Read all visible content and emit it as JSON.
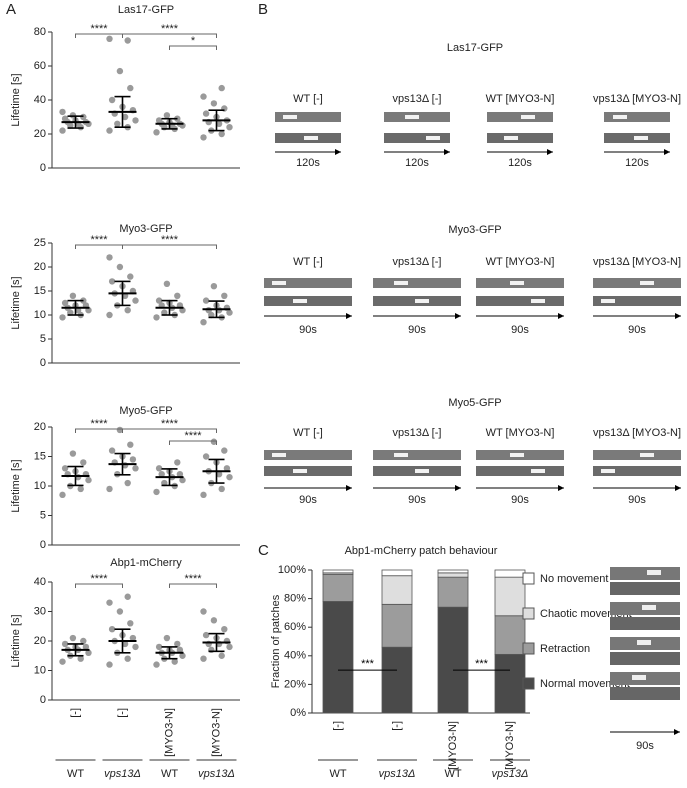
{
  "panel_labels": [
    "A",
    "B",
    "C"
  ],
  "chart_data": [
    {
      "type": "dotplot",
      "title": "Las17-GFP",
      "ylabel": "Lifetime [s]",
      "ylim": [
        0,
        80
      ],
      "yticks": [
        0,
        20,
        40,
        60,
        80
      ],
      "categories": [
        null,
        null,
        null,
        null
      ],
      "group_labels": [
        null,
        null,
        null,
        null
      ],
      "color": "#9a9a9a",
      "groups": [
        {
          "points": [
            22,
            24,
            25,
            26,
            26,
            27,
            27,
            28,
            29,
            30,
            31,
            33
          ],
          "mean": 27,
          "sd": 3.5
        },
        {
          "points": [
            22,
            24,
            26,
            28,
            30,
            32,
            34,
            36,
            40,
            47,
            57,
            76,
            75
          ],
          "mean": 33,
          "sd": 9
        },
        {
          "points": [
            21,
            23,
            24,
            25,
            25,
            26,
            26,
            27,
            28,
            29,
            31
          ],
          "mean": 26,
          "sd": 3
        },
        {
          "points": [
            18,
            20,
            22,
            24,
            26,
            27,
            28,
            30,
            32,
            35,
            38,
            42,
            47
          ],
          "mean": 28,
          "sd": 6
        }
      ],
      "comparisons": [
        {
          "pair": [
            0,
            1
          ],
          "label": "****"
        },
        {
          "pair": [
            1,
            3
          ],
          "label": "****"
        },
        {
          "pair": [
            2,
            3
          ],
          "label": "*"
        }
      ]
    },
    {
      "type": "dotplot",
      "title": "Myo3-GFP",
      "ylabel": "Lifetime [s]",
      "ylim": [
        0,
        25
      ],
      "yticks": [
        0,
        5,
        10,
        15,
        20,
        25
      ],
      "categories": [
        null,
        null,
        null,
        null
      ],
      "group_labels": [
        null,
        null,
        null,
        null
      ],
      "color": "#9a9a9a",
      "groups": [
        {
          "points": [
            9.5,
            10,
            10.5,
            11,
            11,
            11.5,
            12,
            12,
            12.5,
            13,
            14
          ],
          "mean": 11.5,
          "sd": 1.5
        },
        {
          "points": [
            10,
            11,
            12,
            13,
            14,
            14.5,
            15,
            16,
            17,
            18,
            20,
            22
          ],
          "mean": 14.5,
          "sd": 2.5
        },
        {
          "points": [
            9.5,
            10,
            10.5,
            11,
            11.5,
            12,
            12,
            12.5,
            13,
            14,
            16.5
          ],
          "mean": 11.5,
          "sd": 1.5
        },
        {
          "points": [
            8.5,
            9.5,
            10,
            10.5,
            11,
            11,
            11.5,
            12,
            13,
            14,
            16
          ],
          "mean": 11.2,
          "sd": 1.7
        }
      ],
      "comparisons": [
        {
          "pair": [
            0,
            1
          ],
          "label": "****"
        },
        {
          "pair": [
            1,
            3
          ],
          "label": "****"
        }
      ]
    },
    {
      "type": "dotplot",
      "title": "Myo5-GFP",
      "ylabel": "Lifetime [s]",
      "ylim": [
        0,
        20
      ],
      "yticks": [
        0,
        5,
        10,
        15,
        20
      ],
      "categories": [
        null,
        null,
        null,
        null
      ],
      "group_labels": [
        null,
        null,
        null,
        null
      ],
      "color": "#9a9a9a",
      "groups": [
        {
          "points": [
            8.5,
            9.5,
            10,
            11,
            11.5,
            12,
            12,
            12.5,
            13,
            14,
            15.5
          ],
          "mean": 11.7,
          "sd": 1.6
        },
        {
          "points": [
            9.5,
            10.5,
            12,
            13,
            13.5,
            14,
            14.5,
            15,
            16,
            17,
            19.5
          ],
          "mean": 13.7,
          "sd": 1.8
        },
        {
          "points": [
            9,
            10,
            10.5,
            11,
            11.5,
            12,
            12,
            12.5,
            13,
            14
          ],
          "mean": 11.5,
          "sd": 1.4
        },
        {
          "points": [
            8.5,
            9.5,
            10.5,
            11.5,
            12,
            12.5,
            13,
            14,
            15,
            16,
            17.5
          ],
          "mean": 12.5,
          "sd": 2
        }
      ],
      "comparisons": [
        {
          "pair": [
            0,
            1
          ],
          "label": "****"
        },
        {
          "pair": [
            1,
            3
          ],
          "label": "****"
        },
        {
          "pair": [
            2,
            3
          ],
          "label": "****"
        }
      ]
    },
    {
      "type": "dotplot",
      "title": "Abp1-mCherry",
      "ylabel": "Lifetime [s]",
      "ylim": [
        0,
        40
      ],
      "yticks": [
        0,
        10,
        20,
        30,
        40
      ],
      "categories": [
        "[-]",
        "[-]",
        "[MYO3-N]",
        "[MYO3-N]"
      ],
      "group_labels": [
        "WT",
        "vps13Δ",
        "WT",
        "vps13Δ"
      ],
      "color": "#9a9a9a",
      "groups": [
        {
          "points": [
            13,
            14,
            15,
            16,
            17,
            17,
            18,
            18,
            19,
            20,
            21
          ],
          "mean": 17,
          "sd": 2
        },
        {
          "points": [
            12,
            14,
            16,
            18,
            19,
            20,
            21,
            22,
            24,
            26,
            30,
            33,
            35
          ],
          "mean": 20,
          "sd": 4
        },
        {
          "points": [
            12,
            13,
            14,
            15,
            16,
            16,
            17,
            17,
            18,
            19,
            21
          ],
          "mean": 16,
          "sd": 2
        },
        {
          "points": [
            14,
            15,
            17,
            18,
            19,
            19,
            20,
            21,
            22,
            24,
            27,
            30
          ],
          "mean": 19.5,
          "sd": 3
        }
      ],
      "comparisons": [
        {
          "pair": [
            0,
            1
          ],
          "label": "****"
        },
        {
          "pair": [
            2,
            3
          ],
          "label": "****"
        }
      ]
    },
    {
      "type": "stacked_bar",
      "title": "Abp1-mCherry patch behaviour",
      "ylabel": "Fraction of patches",
      "ylim": [
        0,
        100
      ],
      "yticks": [
        {
          "value": 0,
          "label": "0%"
        },
        {
          "value": 20,
          "label": "20%"
        },
        {
          "value": 40,
          "label": "40%"
        },
        {
          "value": 60,
          "label": "60%"
        },
        {
          "value": 80,
          "label": "80%"
        },
        {
          "value": 100,
          "label": "100%"
        }
      ],
      "categories": [
        "[-]",
        "[-]",
        "[MYO3-N]",
        "[MYO3-N]"
      ],
      "group_labels": [
        "WT",
        "vps13Δ",
        "WT",
        "vps13Δ"
      ],
      "series": [
        {
          "name": "Normal movement",
          "color": "#4a4a4a",
          "values": [
            78,
            46,
            74,
            41
          ]
        },
        {
          "name": "Retraction",
          "color": "#9c9c9c",
          "values": [
            19,
            30,
            21,
            27
          ]
        },
        {
          "name": "Chaotic movement",
          "color": "#dedede",
          "values": [
            1,
            20,
            3,
            27
          ]
        },
        {
          "name": "No movement",
          "color": "#ffffff",
          "values": [
            2,
            4,
            2,
            5
          ]
        }
      ],
      "comparisons": [
        {
          "pair": [
            0,
            1
          ],
          "label": "***"
        },
        {
          "pair": [
            2,
            3
          ],
          "label": "***"
        }
      ],
      "kymograph_duration": "90s"
    }
  ],
  "kymographs": [
    {
      "title": "Las17-GFP",
      "labels": [
        "WT [-]",
        "vps13Δ [-]",
        "WT [MYO3-N]",
        "vps13Δ [MYO3-N]"
      ],
      "duration": "120s"
    },
    {
      "title": "Myo3-GFP",
      "labels": [
        "WT [-]",
        "vps13Δ [-]",
        "WT [MYO3-N]",
        "vps13Δ [MYO3-N]"
      ],
      "duration": "90s"
    },
    {
      "title": "Myo5-GFP",
      "labels": [
        "WT [-]",
        "vps13Δ [-]",
        "WT [MYO3-N]",
        "vps13Δ [MYO3-N]"
      ],
      "duration": "90s"
    }
  ]
}
